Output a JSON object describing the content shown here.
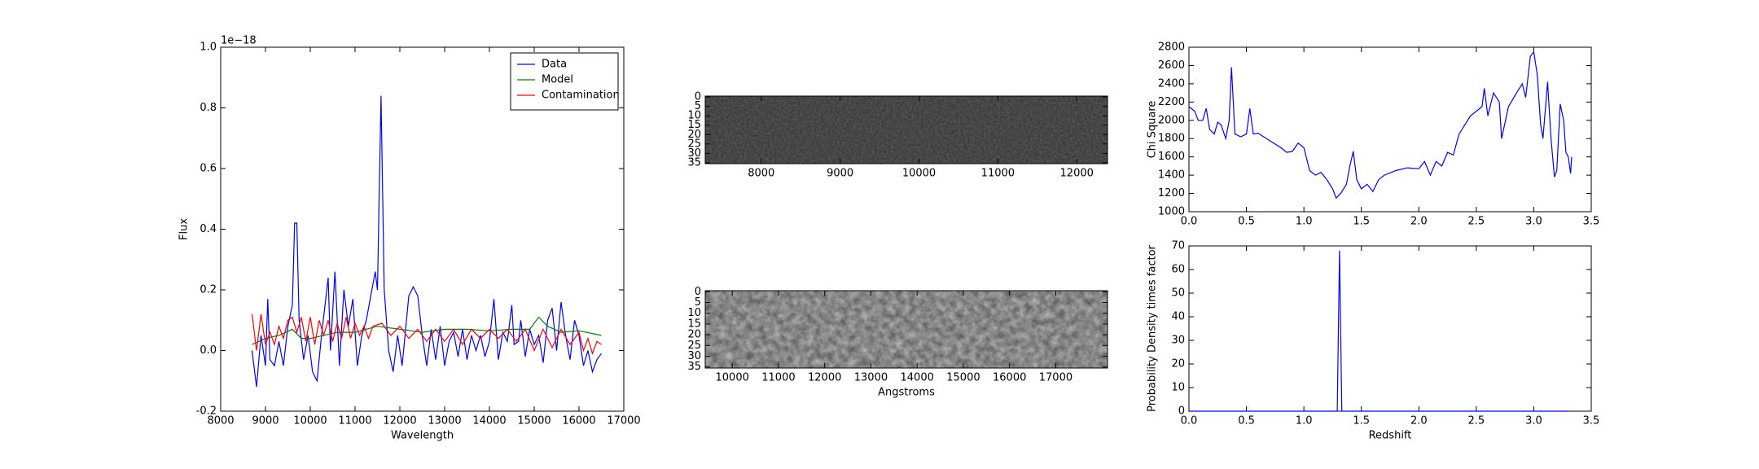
{
  "chart_data": [
    {
      "type": "line",
      "xlabel": "Wavelength",
      "ylabel": "Flux",
      "offset_label": "1e−18",
      "xlim": [
        8000,
        17000
      ],
      "xticks": [
        8000,
        9000,
        10000,
        11000,
        12000,
        13000,
        14000,
        15000,
        16000,
        17000
      ],
      "ylim": [
        -0.2,
        1.0
      ],
      "yticks": [
        -0.2,
        {
          "value": 0,
          "label": "0.0"
        },
        0.2,
        0.4,
        0.6,
        0.8,
        {
          "value": 1,
          "label": "1.0"
        }
      ],
      "legend": "upper right",
      "series": [
        {
          "name": "Data",
          "color": "#0000ff",
          "x": [
            8700,
            8800,
            8900,
            9000,
            9050,
            9100,
            9200,
            9300,
            9400,
            9500,
            9600,
            9650,
            9700,
            9750,
            9850,
            9950,
            10050,
            10150,
            10250,
            10400,
            10450,
            10550,
            10650,
            10750,
            10850,
            10950,
            11050,
            11150,
            11250,
            11350,
            11450,
            11500,
            11580,
            11650,
            11750,
            11850,
            11950,
            12050,
            12200,
            12300,
            12400,
            12500,
            12600,
            12700,
            12800,
            12900,
            13000,
            13100,
            13200,
            13300,
            13400,
            13500,
            13600,
            13700,
            13800,
            13900,
            14000,
            14100,
            14200,
            14300,
            14400,
            14500,
            14550,
            14650,
            14700,
            14800,
            14900,
            15000,
            15100,
            15200,
            15300,
            15400,
            15500,
            15600,
            15700,
            15800,
            15900,
            16000,
            16100,
            16200,
            16300,
            16400,
            16500
          ],
          "values": [
            0.0,
            -0.12,
            0.05,
            -0.05,
            0.17,
            -0.03,
            -0.05,
            0.03,
            -0.05,
            0.08,
            0.15,
            0.42,
            0.42,
            0.1,
            -0.03,
            0.05,
            -0.07,
            -0.1,
            0.05,
            0.24,
            0.0,
            0.26,
            -0.05,
            0.2,
            0.08,
            0.17,
            -0.05,
            0.05,
            0.1,
            0.18,
            0.26,
            0.2,
            0.84,
            0.2,
            0.0,
            -0.07,
            0.05,
            -0.05,
            0.18,
            0.21,
            0.18,
            0.05,
            -0.05,
            0.07,
            -0.03,
            0.08,
            -0.05,
            0.03,
            0.06,
            -0.02,
            0.07,
            -0.03,
            0.05,
            0.0,
            0.05,
            -0.02,
            0.03,
            0.17,
            -0.03,
            0.06,
            0.03,
            0.15,
            0.02,
            0.03,
            0.1,
            -0.02,
            0.07,
            0.02,
            0.05,
            -0.04,
            0.1,
            0.14,
            0.0,
            0.16,
            0.05,
            -0.03,
            0.1,
            0.05,
            -0.05,
            0.0,
            -0.07,
            -0.03,
            -0.01
          ]
        },
        {
          "name": "Model",
          "color": "#008000",
          "x": [
            8700,
            9000,
            9300,
            9600,
            9800,
            10000,
            10300,
            10600,
            11000,
            11500,
            12000,
            12500,
            13000,
            13500,
            14000,
            14500,
            14900,
            15100,
            15300,
            15600,
            16000,
            16500
          ],
          "values": [
            0.02,
            0.04,
            0.05,
            0.07,
            0.04,
            0.04,
            0.05,
            0.06,
            0.06,
            0.08,
            0.07,
            0.06,
            0.07,
            0.07,
            0.065,
            0.07,
            0.07,
            0.11,
            0.08,
            0.06,
            0.065,
            0.05
          ]
        },
        {
          "name": "Contamination",
          "color": "#ff0000",
          "x": [
            8700,
            8800,
            8900,
            9000,
            9100,
            9200,
            9300,
            9400,
            9500,
            9600,
            9700,
            9800,
            9900,
            10000,
            10100,
            10200,
            10300,
            10400,
            10500,
            10600,
            10700,
            10800,
            10900,
            11000,
            11100,
            11200,
            11300,
            11400,
            11600,
            11800,
            12000,
            12200,
            12400,
            12600,
            12800,
            13000,
            13200,
            13400,
            13600,
            13800,
            14000,
            14200,
            14400,
            14600,
            14800,
            15000,
            15200,
            15400,
            15600,
            15800,
            16000,
            16100,
            16200,
            16300,
            16400,
            16500
          ],
          "values": [
            0.12,
            0.0,
            0.12,
            0.02,
            0.06,
            0.02,
            0.08,
            0.04,
            0.1,
            0.11,
            0.06,
            0.11,
            0.03,
            0.11,
            0.02,
            0.1,
            0.05,
            0.1,
            0.03,
            0.09,
            0.04,
            0.11,
            0.04,
            0.09,
            0.05,
            0.08,
            0.04,
            0.08,
            0.09,
            0.05,
            0.08,
            0.04,
            0.07,
            0.03,
            0.07,
            0.03,
            0.07,
            0.02,
            0.07,
            0.04,
            0.07,
            0.04,
            0.07,
            0.03,
            0.07,
            0.0,
            0.07,
            0.01,
            0.07,
            0.02,
            0.06,
            0.0,
            0.04,
            -0.01,
            0.03,
            0.02
          ]
        }
      ]
    },
    {
      "type": "image",
      "colormap": "gray",
      "xlim": [
        7290,
        12390
      ],
      "xticks": [
        8000,
        9000,
        10000,
        11000,
        12000
      ],
      "ylim": [
        35.5,
        -0.5
      ],
      "yticks": [
        0,
        5,
        10,
        15,
        20,
        25,
        30,
        35
      ]
    },
    {
      "type": "image",
      "colormap": "gray",
      "xlabel": "Angstroms",
      "xlim": [
        9415,
        18120
      ],
      "xticks": [
        10000,
        11000,
        12000,
        13000,
        14000,
        15000,
        16000,
        17000
      ],
      "ylim": [
        35.5,
        -0.5
      ],
      "yticks": [
        0,
        5,
        10,
        15,
        20,
        25,
        30,
        35
      ]
    },
    {
      "type": "line",
      "ylabel": "Chi Square",
      "xlim": [
        0,
        3.5
      ],
      "xticks": [
        {
          "value": 0,
          "label": "0.0"
        },
        0.5,
        {
          "value": 1,
          "label": "1.0"
        },
        1.5,
        {
          "value": 2,
          "label": "2.0"
        },
        2.5,
        {
          "value": 3,
          "label": "3.0"
        },
        3.5
      ],
      "ylim": [
        1000,
        2800
      ],
      "yticks": [
        1000,
        1200,
        1400,
        1600,
        1800,
        2000,
        2200,
        2400,
        2600,
        2800
      ],
      "series": [
        {
          "color": "#0000ff",
          "x": [
            0,
            0.05,
            0.08,
            0.12,
            0.15,
            0.18,
            0.22,
            0.25,
            0.28,
            0.32,
            0.35,
            0.37,
            0.4,
            0.45,
            0.5,
            0.53,
            0.56,
            0.6,
            0.7,
            0.8,
            0.85,
            0.9,
            0.95,
            1.0,
            1.05,
            1.1,
            1.15,
            1.2,
            1.25,
            1.28,
            1.32,
            1.37,
            1.4,
            1.43,
            1.46,
            1.5,
            1.55,
            1.6,
            1.65,
            1.7,
            1.8,
            1.9,
            2.0,
            2.05,
            2.1,
            2.15,
            2.2,
            2.25,
            2.3,
            2.35,
            2.4,
            2.45,
            2.5,
            2.55,
            2.57,
            2.6,
            2.65,
            2.7,
            2.72,
            2.78,
            2.85,
            2.9,
            2.93,
            2.97,
            3.0,
            3.03,
            3.06,
            3.08,
            3.12,
            3.15,
            3.18,
            3.2,
            3.23,
            3.26,
            3.28,
            3.3,
            3.32,
            3.33
          ],
          "values": [
            2150,
            2100,
            2000,
            2000,
            2130,
            1900,
            1850,
            1980,
            1950,
            1800,
            2000,
            2580,
            1850,
            1820,
            1850,
            2130,
            1850,
            1860,
            1780,
            1700,
            1650,
            1660,
            1750,
            1700,
            1450,
            1400,
            1430,
            1350,
            1250,
            1150,
            1200,
            1300,
            1500,
            1660,
            1350,
            1250,
            1300,
            1220,
            1350,
            1400,
            1450,
            1480,
            1470,
            1550,
            1400,
            1550,
            1500,
            1650,
            1620,
            1850,
            1950,
            2050,
            2100,
            2150,
            2350,
            2050,
            2300,
            2200,
            1800,
            2150,
            2300,
            2400,
            2250,
            2700,
            2750,
            2500,
            1950,
            1800,
            2420,
            1800,
            1380,
            1450,
            2180,
            2000,
            1650,
            1600,
            1420,
            1600
          ]
        }
      ]
    },
    {
      "type": "line",
      "xlabel": "Redshift",
      "ylabel": "Probability Density times factor",
      "xlim": [
        0,
        3.5
      ],
      "xticks": [
        {
          "value": 0,
          "label": "0.0"
        },
        0.5,
        {
          "value": 1,
          "label": "1.0"
        },
        1.5,
        {
          "value": 2,
          "label": "2.0"
        },
        2.5,
        {
          "value": 3,
          "label": "3.0"
        },
        3.5
      ],
      "ylim": [
        0,
        70
      ],
      "yticks": [
        0,
        10,
        20,
        30,
        40,
        50,
        60,
        70
      ],
      "series": [
        {
          "color": "#0000ff",
          "x": [
            0,
            1.29,
            1.31,
            1.33,
            3.3
          ],
          "values": [
            0,
            0,
            68,
            0,
            0
          ]
        }
      ]
    }
  ]
}
